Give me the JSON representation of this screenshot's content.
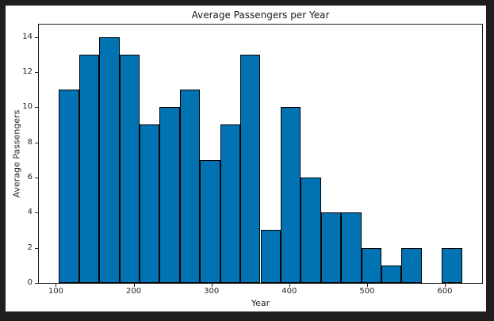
{
  "frame": {
    "background_color": "#1e1e1e",
    "figure_background_color": "#ffffff"
  },
  "chart_data": {
    "type": "bar",
    "variant": "histogram",
    "title": "Average Passengers per Year",
    "xlabel": "Year",
    "ylabel": "Average Passengers",
    "bin_start": 104,
    "bin_width": 25.9,
    "bin_edges": [
      104.0,
      129.9,
      155.8,
      181.7,
      207.6,
      233.5,
      259.4,
      285.3,
      311.2,
      337.1,
      363.0,
      388.9,
      414.8,
      440.7,
      466.6,
      492.5,
      518.4,
      544.3,
      570.2,
      596.1,
      622.0
    ],
    "counts": [
      11,
      13,
      14,
      13,
      9,
      10,
      11,
      7,
      9,
      13,
      3,
      10,
      6,
      4,
      4,
      2,
      1,
      2,
      0,
      2
    ],
    "total_count": 144,
    "x_ticks": [
      100,
      200,
      300,
      400,
      500,
      600
    ],
    "y_ticks": [
      0,
      2,
      4,
      6,
      8,
      10,
      12,
      14
    ],
    "xlim": [
      78.1,
      647.9
    ],
    "ylim": [
      0,
      14.7
    ],
    "bar_color": "#0173b2",
    "bar_edge_color": "#000000",
    "axis_color": "#262626",
    "grid": false,
    "legend": null
  }
}
